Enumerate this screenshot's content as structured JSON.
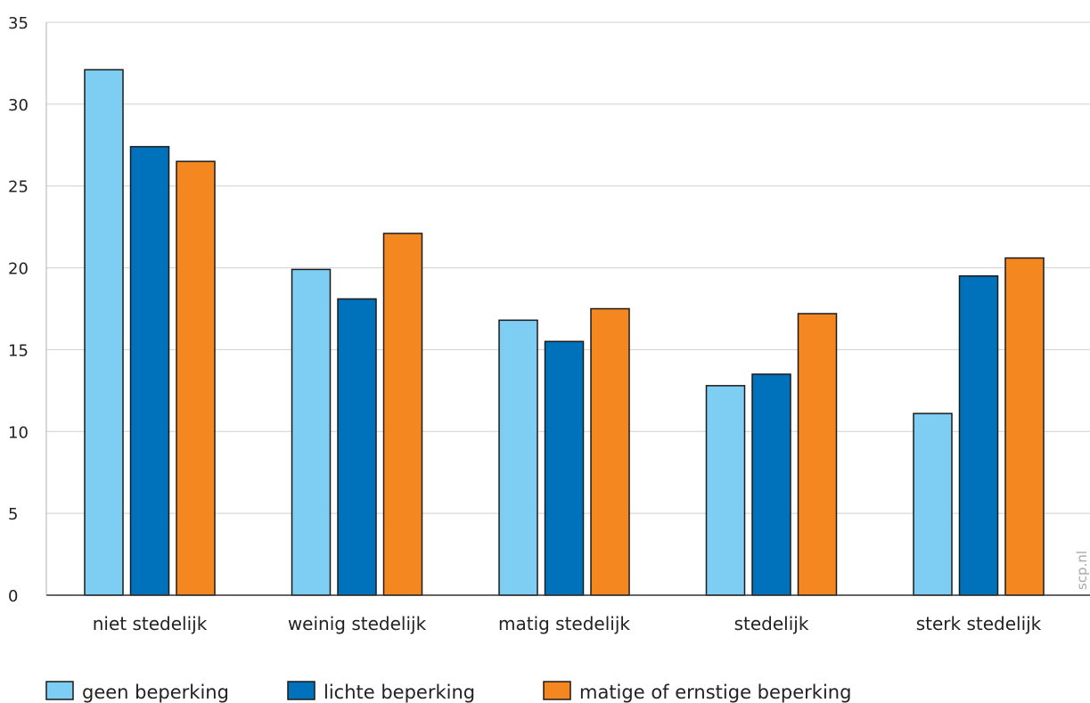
{
  "chart_data": {
    "type": "bar",
    "title": "",
    "xlabel": "",
    "ylabel": "",
    "ylim": [
      0,
      35
    ],
    "yticks": [
      0,
      5,
      10,
      15,
      20,
      25,
      30,
      35
    ],
    "grid": true,
    "legend_position": "bottom",
    "categories": [
      "niet stedelijk",
      "weinig stedelijk",
      "matig stedelijk",
      "stedelijk",
      "sterk stedelijk"
    ],
    "series": [
      {
        "name": "geen beperking",
        "color": "#7ECEF4",
        "values": [
          32.1,
          19.9,
          16.8,
          12.8,
          11.1
        ]
      },
      {
        "name": "lichte beperking",
        "color": "#0072BC",
        "values": [
          27.4,
          18.1,
          15.5,
          13.5,
          19.5
        ]
      },
      {
        "name": "matige of ernstige beperking",
        "color": "#F58720",
        "values": [
          26.5,
          22.1,
          17.5,
          17.2,
          20.6
        ]
      }
    ],
    "watermark": "scp.nl"
  }
}
